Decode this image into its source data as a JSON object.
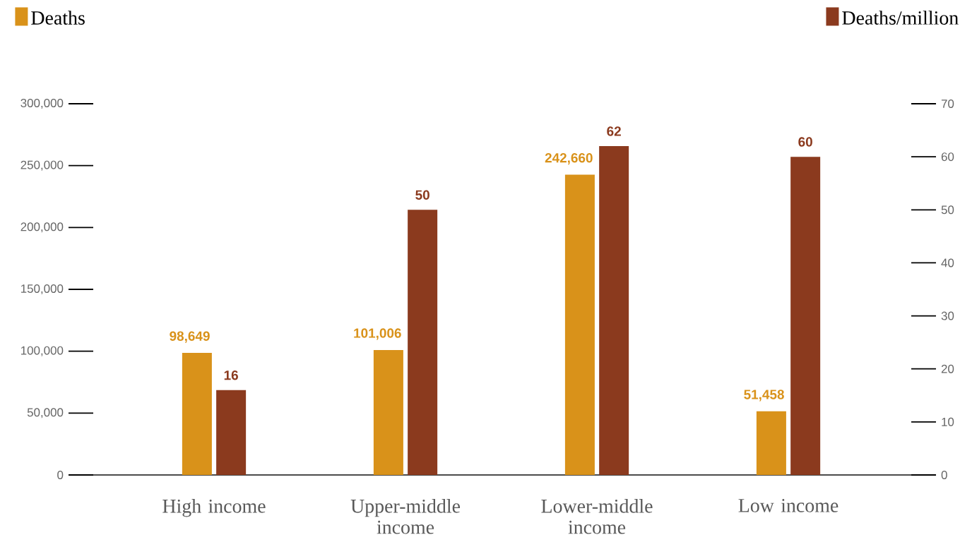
{
  "chart_data": {
    "type": "bar",
    "categories": [
      "High income",
      "Upper-middle income",
      "Lower-middle income",
      "Low income"
    ],
    "series": [
      {
        "name": "Deaths",
        "color": "#d9921a",
        "values": [
          98649,
          101006,
          242660,
          51458
        ],
        "value_labels": [
          "98,649",
          "101,006",
          "242,660",
          "51,458"
        ]
      },
      {
        "name": "Deaths/million",
        "color": "#8b3a1e",
        "values": [
          16,
          50,
          62,
          60
        ],
        "axis": "y2",
        "value_labels": [
          "16",
          "50",
          "62",
          "60"
        ]
      }
    ],
    "ylim": [
      0,
      300000
    ],
    "yticks": [
      0,
      {
        "value": 50000,
        "label": "50,000"
      },
      {
        "value": 100000,
        "label": "100,000"
      },
      {
        "value": 150000,
        "label": "150,000"
      },
      {
        "value": 200000,
        "label": "200,000"
      },
      {
        "value": 250000,
        "label": "250,000"
      },
      {
        "value": 300000,
        "label": "300,000"
      }
    ],
    "y2lim": [
      0,
      70
    ],
    "y2ticks": [
      0,
      10,
      20,
      30,
      40,
      50,
      60,
      70
    ],
    "legend": "top"
  }
}
